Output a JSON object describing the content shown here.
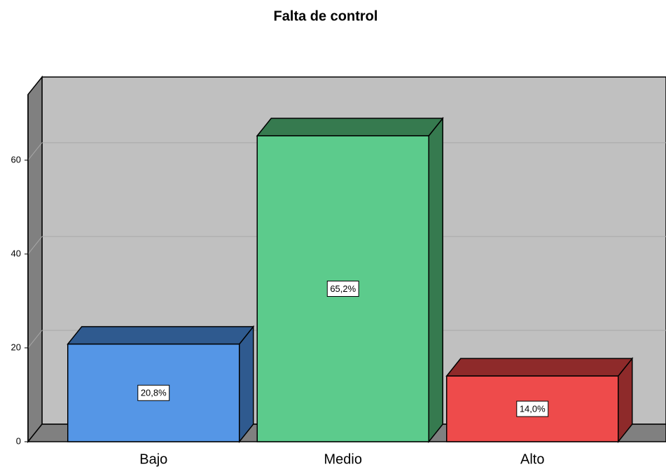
{
  "chart_data": {
    "type": "bar3d",
    "title": "Falta de control",
    "categories": [
      "Bajo",
      "Medio",
      "Alto"
    ],
    "values": [
      20.8,
      65.2,
      14.0
    ],
    "value_labels": [
      "20,8%",
      "65,2%",
      "14,0%"
    ],
    "colors": [
      "#5596e6",
      "#5ccb8c",
      "#ee4b4b"
    ],
    "shade_colors": [
      "#2f5a8f",
      "#367a4f",
      "#8e2a2a"
    ],
    "ylim": [
      0,
      74
    ],
    "yticks": [
      0,
      20,
      40,
      60
    ],
    "grid": true
  }
}
